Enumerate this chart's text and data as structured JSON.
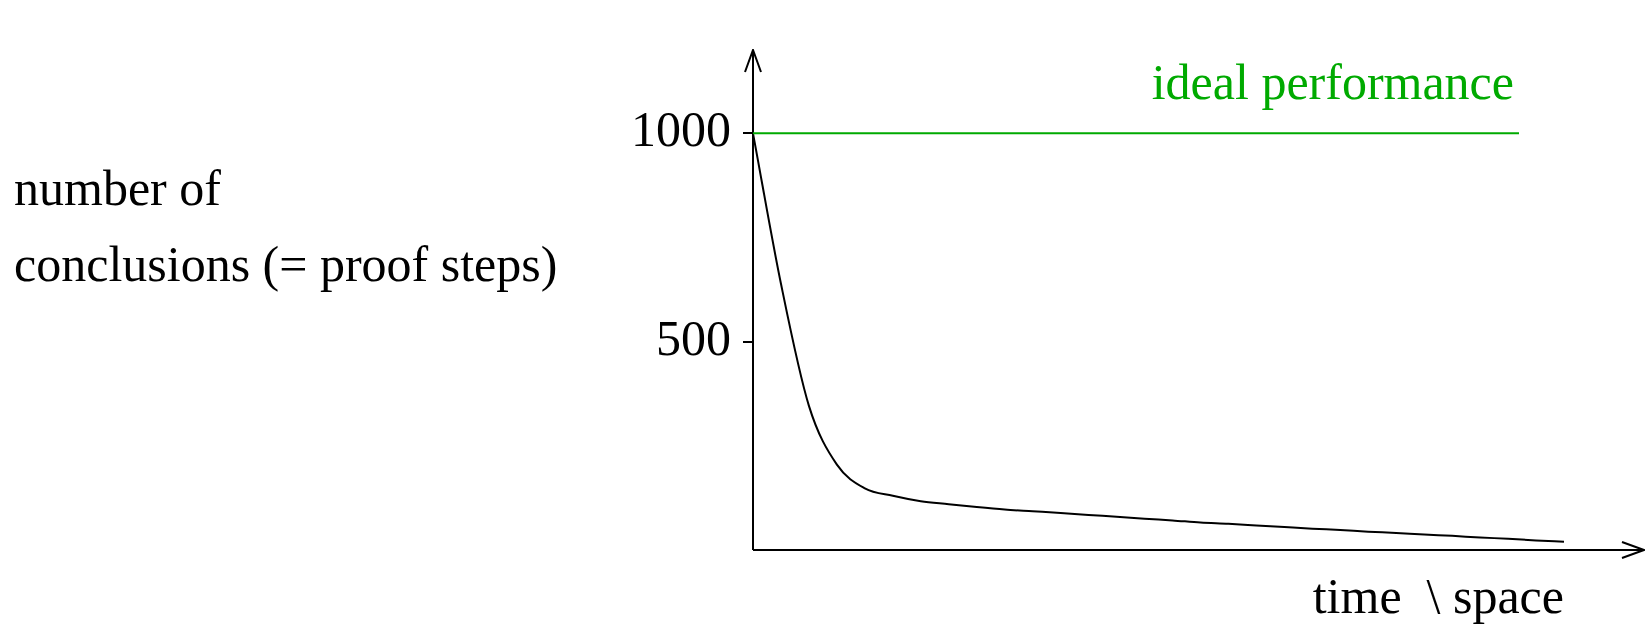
{
  "chart_data": {
    "type": "line",
    "xlabel": "time  \\ space",
    "ylabel": "number of\nconclusions (= proof steps)",
    "categories": [
      null,
      null,
      null,
      null,
      null,
      null,
      null,
      null,
      null,
      null,
      null,
      null,
      null,
      null,
      null,
      null,
      null,
      null,
      null,
      null,
      null,
      null,
      null,
      null,
      null,
      null,
      null,
      null,
      null,
      null
    ],
    "series": [
      {
        "color": "#000000",
        "values": [
          1000,
          639,
          346,
          205,
          148,
          130,
          117,
          110,
          103,
          97,
          93,
          89,
          84,
          80,
          75,
          71,
          66,
          63,
          59,
          55,
          51,
          48,
          44,
          41,
          37,
          34,
          30,
          27,
          23,
          20
        ]
      }
    ],
    "ylim": [
      0,
      1200
    ],
    "yticks": [
      500,
      1000
    ],
    "grid": false,
    "legend": false,
    "marker": "none",
    "line_style": "solid",
    "tick_labels": "y",
    "ref_lines": [
      {
        "axis": "y",
        "value": 1000,
        "label": "ideal performance",
        "color": "#00aa00"
      }
    ]
  }
}
